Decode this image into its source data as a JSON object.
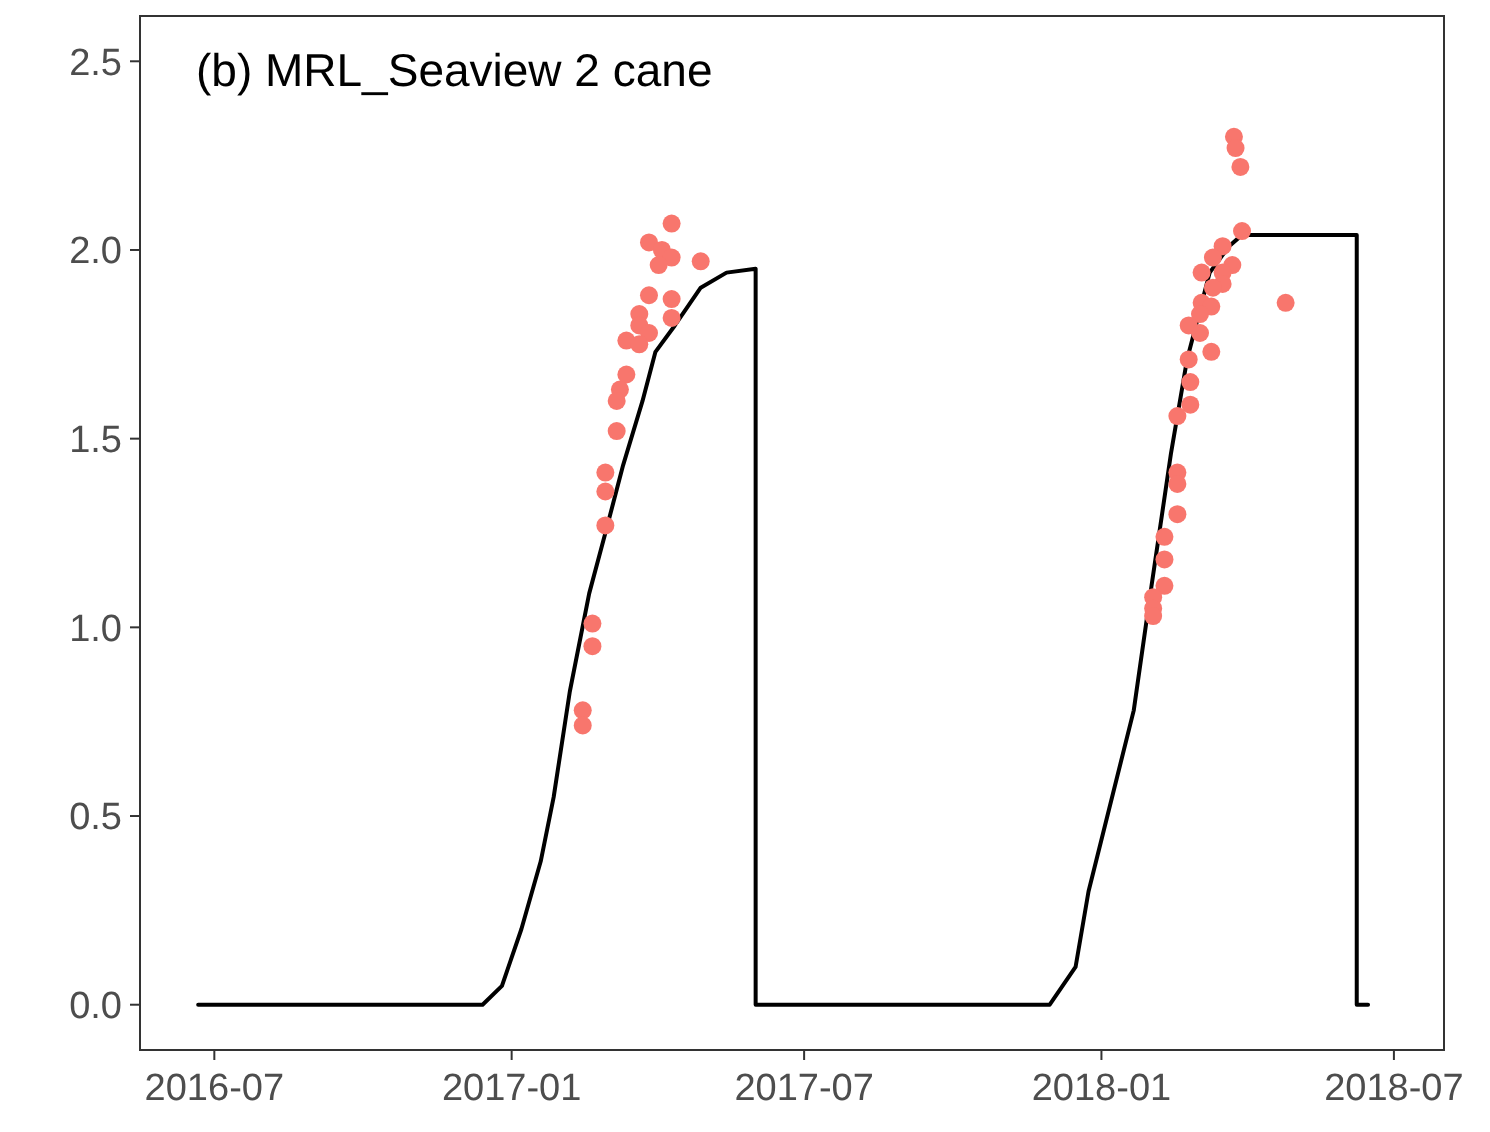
{
  "chart_data": {
    "type": "line",
    "title": "(b) MRL_Seaview 2 cane",
    "xlim": [
      "2016-05-16",
      "2018-08-01"
    ],
    "xticks": [
      {
        "value": "2016-07-01",
        "label": "2016-07"
      },
      {
        "value": "2017-01-01",
        "label": "2017-01"
      },
      {
        "value": "2017-07-01",
        "label": "2017-07"
      },
      {
        "value": "2018-01-01",
        "label": "2018-01"
      },
      {
        "value": "2018-07-01",
        "label": "2018-07"
      }
    ],
    "ylim": [
      -0.12,
      2.62
    ],
    "yticks": [
      {
        "value": 0,
        "label": "0.0"
      },
      {
        "value": 0.5,
        "label": "0.5"
      },
      {
        "value": 1,
        "label": "1.0"
      },
      {
        "value": 1.5,
        "label": "1.5"
      },
      {
        "value": 2,
        "label": "2.0"
      },
      {
        "value": 2.5,
        "label": "2.5"
      }
    ],
    "grid": false,
    "series": [
      {
        "color": "#000000",
        "line_style": "solid",
        "x": [
          "2016-06-21",
          "2016-12-14",
          "2016-12-26",
          "2017-01-07",
          "2017-01-19",
          "2017-01-27",
          "2017-02-06",
          "2017-02-18",
          "2017-02-28",
          "2017-03-11",
          "2017-03-23",
          "2017-03-31",
          "2017-04-12",
          "2017-04-28",
          "2017-05-14",
          "2017-06-01",
          "2017-06-01",
          "2017-11-30",
          "2017-12-16",
          "2017-12-24",
          "2018-01-21",
          "2018-02-01",
          "2018-02-13",
          "2018-02-23",
          "2018-03-09",
          "2018-03-21",
          "2018-03-29",
          "2018-06-08",
          "2018-06-08",
          "2018-06-15"
        ],
        "values": [
          0,
          0,
          0.05,
          0.2,
          0.38,
          0.55,
          0.83,
          1.09,
          1.25,
          1.43,
          1.6,
          1.73,
          1.8,
          1.9,
          1.94,
          1.95,
          0,
          0,
          0.1,
          0.3,
          0.78,
          1.11,
          1.46,
          1.71,
          1.94,
          2.01,
          2.04,
          2.04,
          0,
          0
        ]
      },
      {
        "type": "scatter",
        "color": "#f8766d",
        "marker": "circle",
        "x": [
          "2017-04-10",
          "2017-03-27",
          "2017-04-04",
          "2017-04-10",
          "2017-04-02",
          "2017-04-28",
          "2017-03-27",
          "2017-04-10",
          "2017-03-21",
          "2017-04-10",
          "2017-03-21",
          "2017-03-27",
          "2017-03-13",
          "2017-03-21",
          "2017-03-13",
          "2017-03-09",
          "2017-03-07",
          "2017-03-07",
          "2017-02-28",
          "2017-02-28",
          "2017-02-28",
          "2017-02-20",
          "2017-02-20",
          "2017-02-14",
          "2017-02-14",
          "2018-03-24",
          "2018-03-25",
          "2018-03-28",
          "2018-03-29",
          "2018-03-17",
          "2018-03-11",
          "2018-03-23",
          "2018-03-17",
          "2018-03-04",
          "2018-03-17",
          "2018-03-11",
          "2018-04-25",
          "2018-03-04",
          "2018-03-10",
          "2018-03-03",
          "2018-02-24",
          "2018-03-03",
          "2018-03-10",
          "2018-02-24",
          "2018-02-25",
          "2018-02-25",
          "2018-02-17",
          "2018-02-17",
          "2018-02-17",
          "2018-02-17",
          "2018-02-09",
          "2018-02-09",
          "2018-02-09",
          "2018-02-02",
          "2018-02-02",
          "2018-02-02"
        ],
        "values": [
          2.07,
          2.02,
          2.0,
          1.98,
          1.96,
          1.97,
          1.88,
          1.87,
          1.83,
          1.82,
          1.8,
          1.78,
          1.76,
          1.75,
          1.67,
          1.63,
          1.6,
          1.52,
          1.41,
          1.36,
          1.27,
          0.95,
          1.01,
          0.78,
          0.74,
          2.3,
          2.27,
          2.22,
          2.05,
          2.01,
          1.98,
          1.96,
          1.94,
          1.94,
          1.91,
          1.9,
          1.86,
          1.86,
          1.85,
          1.83,
          1.8,
          1.78,
          1.73,
          1.71,
          1.65,
          1.59,
          1.56,
          1.41,
          1.38,
          1.3,
          1.24,
          1.18,
          1.11,
          1.08,
          1.05,
          1.03
        ]
      }
    ]
  }
}
